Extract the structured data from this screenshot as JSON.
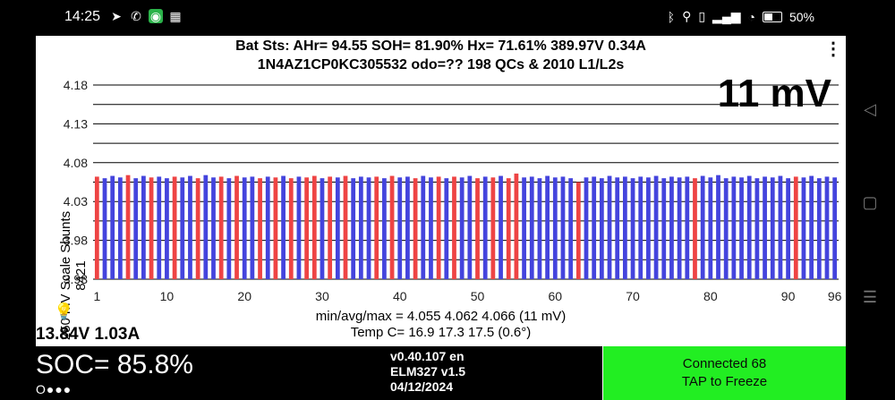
{
  "status_bar": {
    "time": "14:25",
    "battery": "50%",
    "icons_left": [
      "telegram-icon",
      "whatsapp-icon",
      "green-app-icon",
      "gallery-icon"
    ],
    "icons_right": [
      "bluetooth-icon",
      "location-icon",
      "vibrate-icon",
      "signal-icon",
      "wifi-icon",
      "battery-icon"
    ]
  },
  "header": {
    "line1": "Bat Sts:  AHr= 94.55  SOH= 81.90%  Hx= 71.61%  389.97V 0.34A",
    "line2": "1N4AZ1CP0KC305532 odo=??  198 QCs & 2010 L1/L2s",
    "menu": "⋮"
  },
  "display": {
    "delta": "11 mV",
    "y_axis_label": "250 mV Scale   Shunts 8421",
    "stats_line1": "min/avg/max = 4.055 4.062 4.066  (11 mV)",
    "stats_line2": "Temp C= 16.9  17.3  17.5  (0.6°)",
    "aux_voltage": "13.84V 1.03A",
    "soc": "SOC= 85.8%",
    "dots": "O●●●",
    "version": "v0.40.107 en",
    "adapter": "ELM327 v1.5",
    "date": "04/12/2024",
    "connected": "Connected 68",
    "tap_hint": "TAP to Freeze"
  },
  "colors": {
    "bar_normal": "#4444dd",
    "bar_shunt": "#ee4444",
    "connected_bg": "#22ee22"
  },
  "chart_data": {
    "type": "bar",
    "title": "",
    "xlabel": "",
    "ylabel": "250 mV Scale   Shunts 8421",
    "ylim": [
      3.93,
      4.18
    ],
    "yticks": [
      3.93,
      3.98,
      4.03,
      4.08,
      4.13,
      4.18
    ],
    "xticks": [
      1,
      10,
      20,
      30,
      40,
      50,
      60,
      70,
      80,
      90,
      96
    ],
    "x": [
      1,
      2,
      3,
      4,
      5,
      6,
      7,
      8,
      9,
      10,
      11,
      12,
      13,
      14,
      15,
      16,
      17,
      18,
      19,
      20,
      21,
      22,
      23,
      24,
      25,
      26,
      27,
      28,
      29,
      30,
      31,
      32,
      33,
      34,
      35,
      36,
      37,
      38,
      39,
      40,
      41,
      42,
      43,
      44,
      45,
      46,
      47,
      48,
      49,
      50,
      51,
      52,
      53,
      54,
      55,
      56,
      57,
      58,
      59,
      60,
      61,
      62,
      63,
      64,
      65,
      66,
      67,
      68,
      69,
      70,
      71,
      72,
      73,
      74,
      75,
      76,
      77,
      78,
      79,
      80,
      81,
      82,
      83,
      84,
      85,
      86,
      87,
      88,
      89,
      90,
      91,
      92,
      93,
      94,
      95,
      96
    ],
    "values": [
      4.062,
      4.06,
      4.063,
      4.061,
      4.064,
      4.06,
      4.063,
      4.061,
      4.062,
      4.06,
      4.062,
      4.061,
      4.063,
      4.06,
      4.064,
      4.061,
      4.062,
      4.06,
      4.063,
      4.061,
      4.062,
      4.06,
      4.062,
      4.061,
      4.063,
      4.06,
      4.062,
      4.061,
      4.063,
      4.06,
      4.062,
      4.061,
      4.063,
      4.06,
      4.062,
      4.061,
      4.062,
      4.06,
      4.063,
      4.061,
      4.062,
      4.06,
      4.063,
      4.061,
      4.062,
      4.06,
      4.062,
      4.061,
      4.063,
      4.06,
      4.062,
      4.061,
      4.063,
      4.06,
      4.066,
      4.061,
      4.062,
      4.06,
      4.063,
      4.061,
      4.062,
      4.06,
      4.055,
      4.061,
      4.062,
      4.06,
      4.063,
      4.061,
      4.062,
      4.06,
      4.062,
      4.061,
      4.063,
      4.06,
      4.062,
      4.061,
      4.062,
      4.06,
      4.063,
      4.061,
      4.064,
      4.06,
      4.062,
      4.061,
      4.063,
      4.06,
      4.062,
      4.061,
      4.063,
      4.06,
      4.062,
      4.061,
      4.063,
      4.06,
      4.062,
      4.061
    ],
    "shunted_cells": [
      1,
      5,
      8,
      11,
      14,
      17,
      19,
      22,
      24,
      26,
      28,
      29,
      31,
      33,
      37,
      39,
      42,
      45,
      47,
      50,
      52,
      54,
      55,
      63,
      78,
      91
    ]
  }
}
